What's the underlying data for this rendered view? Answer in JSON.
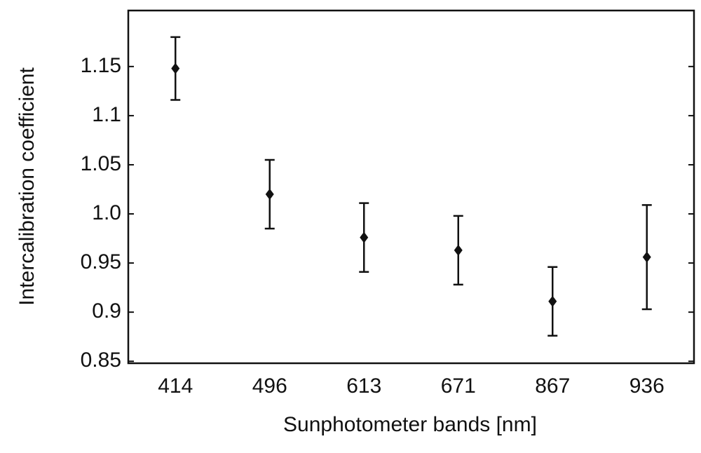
{
  "chart_data": {
    "type": "errorbar",
    "x_label": "Sunphotometer bands [nm]",
    "y_label": "Intercalibration coefficient",
    "categories": [
      "414",
      "496",
      "613",
      "671",
      "867",
      "936"
    ],
    "values": [
      1.148,
      1.02,
      0.976,
      0.963,
      0.911,
      0.956
    ],
    "errors": [
      0.032,
      0.035,
      0.035,
      0.035,
      0.035,
      0.053
    ],
    "color": "#111111",
    "ylim": [
      0.848,
      1.207
    ],
    "yticks": [
      0.85,
      0.9,
      0.95,
      {
        "value": 1,
        "label": "1.0"
      },
      1.05,
      1.1,
      1.15
    ],
    "grid": false
  }
}
